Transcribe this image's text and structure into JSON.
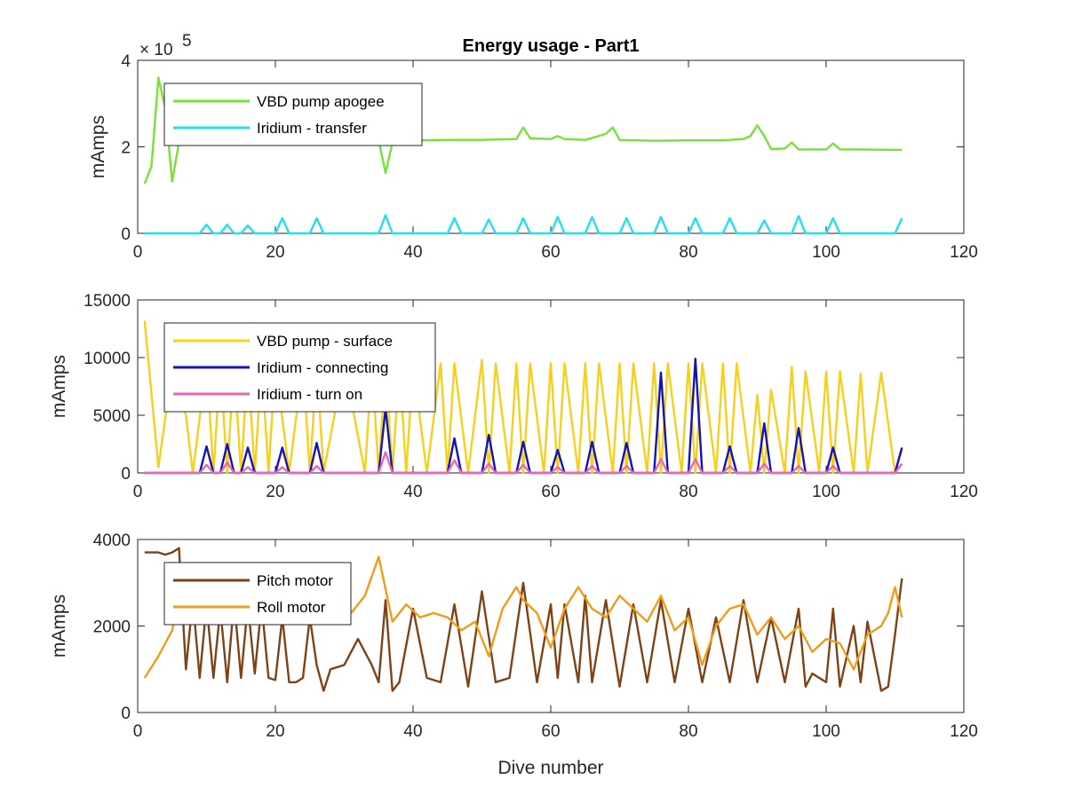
{
  "figure": {
    "title": "Energy usage - Part1",
    "xlabel": "Dive number"
  },
  "chart_data": [
    {
      "type": "line",
      "title": "Energy usage - Part1",
      "xlabel": "",
      "ylabel": "mAmps",
      "xlim": [
        0,
        120
      ],
      "ylim": [
        0,
        400000
      ],
      "xticks": [
        0,
        20,
        40,
        60,
        80,
        100,
        120
      ],
      "yticks": [
        0,
        2,
        4
      ],
      "ytick_scale": 100000,
      "exponent_label": "× 10",
      "exponent_power": "5",
      "grid": false,
      "legend_position": "top-left",
      "series": [
        {
          "name": "VBD pump apogee",
          "color": "#77e13a",
          "x": [
            1,
            2,
            3,
            4,
            5,
            6,
            7,
            8,
            10,
            15,
            20,
            25,
            30,
            35,
            36,
            37,
            40,
            45,
            50,
            55,
            56,
            57,
            60,
            61,
            62,
            65,
            68,
            69,
            70,
            75,
            80,
            85,
            88,
            89,
            90,
            91,
            92,
            94,
            95,
            96,
            100,
            101,
            102,
            105,
            110,
            111
          ],
          "y": [
            115000,
            155000,
            360000,
            290000,
            120000,
            210000,
            235000,
            240000,
            235000,
            230000,
            228000,
            225000,
            222000,
            215000,
            140000,
            210000,
            215000,
            216000,
            216000,
            218000,
            245000,
            220000,
            218000,
            225000,
            218000,
            216000,
            230000,
            245000,
            216000,
            214000,
            215000,
            215000,
            218000,
            225000,
            250000,
            225000,
            195000,
            196000,
            210000,
            194000,
            194000,
            208000,
            194000,
            194000,
            193000,
            193000
          ]
        },
        {
          "name": "Iridium - transfer",
          "color": "#22e0ee",
          "x": [
            1,
            9,
            10,
            11,
            12,
            13,
            14,
            15,
            16,
            17,
            20,
            21,
            22,
            25,
            26,
            27,
            35,
            36,
            37,
            45,
            46,
            47,
            50,
            51,
            52,
            55,
            56,
            57,
            60,
            61,
            62,
            65,
            66,
            67,
            70,
            71,
            72,
            75,
            76,
            77,
            80,
            81,
            82,
            85,
            86,
            87,
            90,
            91,
            92,
            95,
            96,
            97,
            100,
            101,
            102,
            110,
            111
          ],
          "y": [
            0,
            0,
            20000,
            0,
            0,
            20000,
            0,
            0,
            18000,
            0,
            0,
            35000,
            0,
            0,
            35000,
            0,
            0,
            42000,
            0,
            0,
            35000,
            0,
            0,
            32000,
            0,
            0,
            35000,
            0,
            0,
            38000,
            0,
            0,
            38000,
            0,
            0,
            35000,
            0,
            0,
            38000,
            0,
            0,
            35000,
            0,
            0,
            35000,
            0,
            0,
            30000,
            0,
            0,
            40000,
            0,
            0,
            35000,
            0,
            0,
            35000
          ]
        }
      ]
    },
    {
      "type": "line",
      "title": "",
      "xlabel": "",
      "ylabel": "mAmps",
      "xlim": [
        0,
        120
      ],
      "ylim": [
        0,
        15000
      ],
      "xticks": [
        0,
        20,
        40,
        60,
        80,
        100,
        120
      ],
      "yticks": [
        0,
        5000,
        10000,
        15000
      ],
      "grid": false,
      "legend_position": "top-left",
      "series": [
        {
          "name": "VBD pump - surface",
          "color": "#f7cf1c",
          "x": [
            1,
            3,
            5,
            7,
            8,
            10,
            11,
            12,
            13,
            14,
            15,
            16,
            17,
            18,
            19,
            20,
            22,
            24,
            25,
            26,
            27,
            30,
            33,
            34,
            35,
            36,
            37,
            38,
            39,
            40,
            42,
            44,
            45,
            46,
            48,
            50,
            51,
            52,
            54,
            55,
            56,
            57,
            59,
            60,
            61,
            62,
            64,
            65,
            66,
            67,
            69,
            70,
            71,
            72,
            74,
            75,
            76,
            77,
            79,
            80,
            81,
            82,
            84,
            85,
            86,
            87,
            89,
            90,
            91,
            92,
            94,
            95,
            96,
            97,
            99,
            100,
            101,
            102,
            104,
            105,
            106,
            108,
            110,
            111
          ],
          "y": [
            13200,
            500,
            9000,
            5000,
            0,
            9500,
            0,
            9500,
            0,
            9500,
            0,
            9500,
            0,
            9500,
            0,
            9500,
            0,
            9500,
            0,
            9500,
            0,
            9500,
            0,
            9500,
            0,
            9500,
            0,
            9500,
            0,
            9500,
            0,
            9500,
            0,
            9500,
            0,
            9800,
            0,
            9500,
            0,
            9500,
            0,
            9500,
            0,
            9500,
            0,
            9500,
            0,
            9500,
            0,
            9500,
            0,
            9500,
            0,
            9500,
            0,
            9500,
            0,
            9500,
            0,
            9500,
            0,
            9500,
            0,
            9500,
            0,
            9500,
            0,
            6800,
            0,
            7200,
            0,
            9200,
            0,
            8800,
            0,
            8800,
            0,
            8800,
            0,
            8600,
            0,
            8700,
            0,
            2000
          ]
        },
        {
          "name": "Iridium - connecting",
          "color": "#1214b4",
          "x": [
            1,
            9,
            10,
            11,
            12,
            13,
            14,
            15,
            16,
            17,
            20,
            21,
            22,
            25,
            26,
            27,
            35,
            36,
            37,
            45,
            46,
            47,
            50,
            51,
            52,
            55,
            56,
            57,
            60,
            61,
            62,
            65,
            66,
            67,
            70,
            71,
            72,
            75,
            76,
            77,
            80,
            81,
            82,
            85,
            86,
            87,
            90,
            91,
            92,
            95,
            96,
            97,
            100,
            101,
            102,
            110,
            111
          ],
          "y": [
            0,
            0,
            2300,
            0,
            0,
            2500,
            0,
            0,
            2200,
            0,
            0,
            2200,
            0,
            0,
            2600,
            0,
            0,
            5600,
            0,
            0,
            3000,
            0,
            0,
            3300,
            0,
            0,
            2700,
            0,
            0,
            2000,
            0,
            0,
            2700,
            0,
            0,
            2600,
            0,
            0,
            8700,
            0,
            0,
            9900,
            0,
            0,
            2300,
            0,
            0,
            4300,
            0,
            0,
            3900,
            0,
            0,
            2200,
            0,
            0,
            2200
          ]
        },
        {
          "name": "Iridium - turn on",
          "color": "#e868b8",
          "x": [
            1,
            9,
            10,
            11,
            12,
            13,
            14,
            15,
            16,
            17,
            20,
            21,
            22,
            25,
            26,
            27,
            35,
            36,
            37,
            45,
            46,
            47,
            50,
            51,
            52,
            55,
            56,
            57,
            60,
            61,
            62,
            65,
            66,
            67,
            70,
            71,
            72,
            75,
            76,
            77,
            80,
            81,
            82,
            85,
            86,
            87,
            90,
            91,
            92,
            95,
            96,
            97,
            100,
            101,
            102,
            110,
            111
          ],
          "y": [
            0,
            0,
            700,
            0,
            0,
            900,
            0,
            0,
            500,
            0,
            0,
            500,
            0,
            0,
            600,
            0,
            0,
            1800,
            0,
            0,
            1100,
            0,
            0,
            800,
            0,
            0,
            700,
            0,
            0,
            500,
            0,
            0,
            600,
            0,
            0,
            600,
            0,
            0,
            1200,
            0,
            0,
            1200,
            0,
            0,
            600,
            0,
            0,
            800,
            0,
            0,
            600,
            0,
            0,
            600,
            0,
            0,
            800
          ]
        }
      ]
    },
    {
      "type": "line",
      "title": "",
      "xlabel": "Dive number",
      "ylabel": "mAmps",
      "xlim": [
        0,
        120
      ],
      "ylim": [
        0,
        4000
      ],
      "xticks": [
        0,
        20,
        40,
        60,
        80,
        100,
        120
      ],
      "yticks": [
        0,
        2000,
        4000
      ],
      "grid": false,
      "legend_position": "top-left",
      "series": [
        {
          "name": "Pitch motor",
          "color": "#7e4215",
          "x": [
            1,
            3,
            4,
            5,
            6,
            7,
            8,
            9,
            10,
            11,
            12,
            13,
            14,
            15,
            16,
            17,
            18,
            19,
            20,
            21,
            22,
            23,
            24,
            25,
            26,
            27,
            28,
            30,
            32,
            34,
            35,
            36,
            37,
            38,
            40,
            42,
            44,
            46,
            48,
            50,
            52,
            54,
            56,
            58,
            60,
            61,
            62,
            64,
            65,
            66,
            68,
            70,
            72,
            74,
            76,
            78,
            80,
            82,
            84,
            86,
            88,
            90,
            92,
            94,
            96,
            97,
            98,
            100,
            101,
            102,
            104,
            105,
            106,
            108,
            109,
            110,
            111
          ],
          "y": [
            3700,
            3700,
            3650,
            3700,
            3800,
            1000,
            2600,
            800,
            2500,
            800,
            2400,
            700,
            2600,
            800,
            2500,
            900,
            2500,
            800,
            750,
            2200,
            700,
            700,
            800,
            2200,
            1100,
            500,
            1000,
            1100,
            1700,
            1100,
            700,
            2600,
            500,
            700,
            2400,
            800,
            700,
            2500,
            600,
            2800,
            700,
            800,
            3000,
            700,
            2500,
            800,
            2500,
            700,
            2700,
            700,
            2600,
            600,
            2500,
            700,
            2600,
            700,
            2400,
            700,
            2200,
            700,
            2600,
            700,
            2200,
            700,
            2400,
            600,
            900,
            700,
            2400,
            600,
            2000,
            700,
            2100,
            500,
            600,
            1800,
            3100
          ]
        },
        {
          "name": "Roll motor",
          "color": "#f09c18",
          "x": [
            1,
            3,
            5,
            7,
            9,
            11,
            13,
            15,
            17,
            19,
            21,
            23,
            25,
            27,
            29,
            31,
            33,
            35,
            37,
            39,
            41,
            43,
            45,
            47,
            49,
            51,
            53,
            55,
            56,
            58,
            60,
            62,
            64,
            66,
            68,
            70,
            72,
            74,
            76,
            78,
            80,
            82,
            84,
            86,
            88,
            90,
            92,
            94,
            96,
            98,
            100,
            102,
            104,
            106,
            108,
            109,
            110,
            111
          ],
          "y": [
            800,
            1300,
            1900,
            3300,
            3000,
            3400,
            2200,
            2800,
            2500,
            2800,
            2200,
            2500,
            2100,
            2400,
            2500,
            2300,
            2700,
            3600,
            2100,
            2500,
            2200,
            2300,
            2200,
            1900,
            2100,
            1300,
            2400,
            2900,
            2600,
            2300,
            1500,
            2400,
            2900,
            2400,
            2200,
            2700,
            2400,
            2100,
            2700,
            1900,
            2200,
            1100,
            2000,
            2400,
            2500,
            1800,
            2200,
            1700,
            2000,
            1400,
            1700,
            1600,
            1000,
            1800,
            2000,
            2300,
            2900,
            2200
          ]
        }
      ]
    }
  ]
}
